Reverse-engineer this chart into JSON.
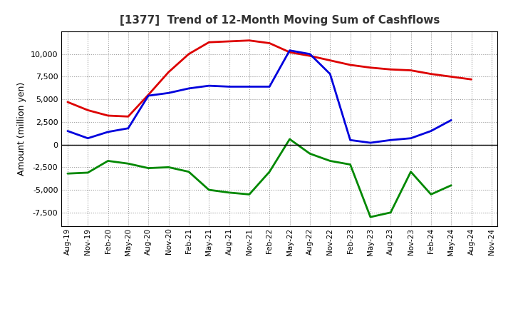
{
  "title": "[1377]  Trend of 12-Month Moving Sum of Cashflows",
  "ylabel": "Amount (million yen)",
  "xlabels": [
    "Aug-19",
    "Nov-19",
    "Feb-20",
    "May-20",
    "Aug-20",
    "Nov-20",
    "Feb-21",
    "May-21",
    "Aug-21",
    "Nov-21",
    "Feb-22",
    "May-22",
    "Aug-22",
    "Nov-22",
    "Feb-23",
    "May-23",
    "Aug-23",
    "Nov-23",
    "Feb-24",
    "May-24",
    "Aug-24",
    "Nov-24"
  ],
  "operating": [
    4700,
    3800,
    3200,
    3100,
    5500,
    8000,
    10000,
    11300,
    11400,
    11500,
    11200,
    10200,
    9800,
    9300,
    8800,
    8500,
    8300,
    8200,
    7800,
    7500,
    7200,
    null
  ],
  "investing": [
    -3200,
    -3100,
    -1800,
    -2100,
    -2600,
    -2500,
    -3000,
    -5000,
    -5300,
    -5500,
    -3000,
    600,
    -1000,
    -1800,
    -2200,
    -8000,
    -7500,
    -3000,
    -5500,
    -4500,
    null,
    null
  ],
  "free": [
    1500,
    700,
    1400,
    1800,
    5400,
    5700,
    6200,
    6500,
    6400,
    6400,
    6400,
    10400,
    10000,
    7800,
    500,
    200,
    500,
    700,
    1500,
    2700,
    null,
    null
  ],
  "operating_color": "#dd0000",
  "investing_color": "#008800",
  "free_color": "#0000dd",
  "ylim": [
    -9000,
    12500
  ],
  "yticks": [
    -7500,
    -5000,
    -2500,
    0,
    2500,
    5000,
    7500,
    10000
  ],
  "bg_color": "#ffffff",
  "grid_color": "#999999"
}
